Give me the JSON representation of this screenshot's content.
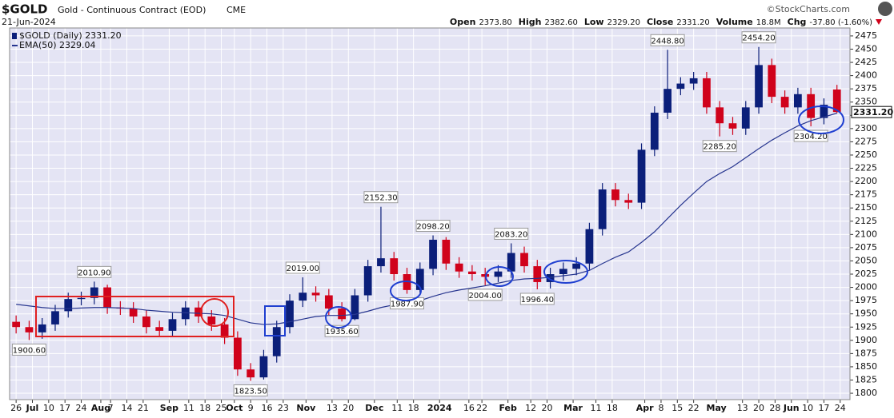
{
  "chart_data": {
    "type": "candlestick",
    "title": "$GOLD",
    "subtitle": "Gold - Continuous Contract (EOD)",
    "exchange": "CME",
    "date": "21-Jun-2024",
    "source": "©StockCharts.com",
    "header": [
      {
        "label": "Open",
        "value": "2373.80"
      },
      {
        "label": "High",
        "value": "2382.60"
      },
      {
        "label": "Low",
        "value": "2329.20"
      },
      {
        "label": "Close",
        "value": "2331.20"
      },
      {
        "label": "Volume",
        "value": "18.8M"
      },
      {
        "label": "Chg",
        "value": "-37.80 (-1.60%)"
      }
    ],
    "last_label": "2331.20",
    "x": [
      0,
      4,
      8,
      12,
      16,
      20,
      24,
      28,
      32,
      36,
      40,
      44,
      48,
      52,
      56,
      60,
      64,
      68,
      72,
      76,
      80,
      84,
      88,
      92,
      96,
      100,
      104,
      108,
      112,
      116,
      120,
      124,
      128,
      132,
      136,
      140,
      144,
      148,
      152,
      156,
      160,
      164,
      168,
      172,
      176,
      180,
      184,
      188,
      192,
      196,
      200,
      204,
      208,
      212,
      216,
      220,
      224,
      228,
      232,
      236,
      240,
      244,
      248,
      252
    ],
    "price": {
      "name": "$GOLD (Daily) 2331.20",
      "up_color": "#0b1f7a",
      "down_color": "#d0021b",
      "open": [
        1935,
        1925,
        1915,
        1930,
        1955,
        1978,
        1980,
        2000,
        1962,
        1960,
        1945,
        1925,
        1918,
        1940,
        1962,
        1945,
        1930,
        1905,
        1845,
        1830,
        1870,
        1925,
        1975,
        1990,
        1985,
        1960,
        1940,
        1985,
        2040,
        2055,
        2025,
        1995,
        2035,
        2090,
        2045,
        2030,
        2025,
        2020,
        2030,
        2065,
        2040,
        2010,
        2025,
        2035,
        2045,
        2110,
        2185,
        2165,
        2160,
        2260,
        2330,
        2375,
        2385,
        2395,
        2340,
        2310,
        2300,
        2340,
        2420,
        2360,
        2340,
        2365,
        2320,
        2373.8
      ],
      "high": [
        1947,
        1937,
        1942,
        1967,
        1990,
        1992,
        2010.9,
        2005,
        1974,
        1972,
        1957,
        1937,
        1952,
        1974,
        1974,
        1957,
        1942,
        1917,
        1857,
        1882,
        1937,
        1987,
        2019,
        2002,
        1997,
        1972,
        1997,
        2052,
        2152.3,
        2067,
        2037,
        2047,
        2098.2,
        2095,
        2057,
        2042,
        2037,
        2042,
        2083.2,
        2077,
        2052,
        2037,
        2047,
        2057,
        2122,
        2197,
        2197,
        2177,
        2272,
        2342,
        2448.8,
        2397,
        2407,
        2407,
        2352,
        2322,
        2352,
        2454.2,
        2432,
        2372,
        2377,
        2377,
        2357,
        2382.6
      ],
      "low": [
        1913,
        1900.6,
        1903,
        1918,
        1943,
        1966,
        1968,
        1950,
        1948,
        1933,
        1913,
        1906,
        1906,
        1928,
        1933,
        1918,
        1893,
        1833,
        1823.5,
        1826,
        1858,
        1913,
        1963,
        1973,
        1948,
        1935.6,
        1938,
        1973,
        2028,
        2013,
        1987.9,
        1990,
        2023,
        2033,
        2018,
        2013,
        2004,
        2010,
        2018,
        2028,
        1996.4,
        1998,
        2013,
        2023,
        2033,
        2098,
        2153,
        2148,
        2148,
        2248,
        2318,
        2363,
        2373,
        2328,
        2285.2,
        2288,
        2288,
        2328,
        2348,
        2328,
        2328,
        2304.2,
        2308,
        2329.2
      ],
      "close": [
        1925,
        1915,
        1930,
        1955,
        1978,
        1980,
        2000,
        1962,
        1960,
        1945,
        1925,
        1918,
        1940,
        1962,
        1945,
        1930,
        1905,
        1845,
        1830,
        1870,
        1925,
        1975,
        1990,
        1985,
        1960,
        1940,
        1985,
        2040,
        2055,
        2025,
        1995,
        2035,
        2090,
        2045,
        2030,
        2025,
        2020,
        2030,
        2065,
        2040,
        2010,
        2025,
        2035,
        2045,
        2110,
        2185,
        2165,
        2160,
        2260,
        2330,
        2375,
        2385,
        2395,
        2340,
        2310,
        2300,
        2340,
        2420,
        2360,
        2340,
        2365,
        2320,
        2345,
        2331.2
      ]
    },
    "ema": {
      "name": "EMA(50) 2329.04",
      "color": "#27368f",
      "values": [
        1968,
        1965,
        1962,
        1960,
        1960,
        1961,
        1962,
        1962,
        1961,
        1960,
        1957,
        1955,
        1953,
        1952,
        1951,
        1950,
        1947,
        1940,
        1933,
        1930,
        1931,
        1935,
        1940,
        1945,
        1947,
        1947,
        1949,
        1955,
        1962,
        1967,
        1970,
        1975,
        1983,
        1990,
        1995,
        1999,
        2003,
        2008,
        2013,
        2016,
        2017,
        2019,
        2022,
        2025,
        2032,
        2045,
        2057,
        2067,
        2085,
        2105,
        2130,
        2155,
        2178,
        2200,
        2215,
        2228,
        2245,
        2262,
        2278,
        2292,
        2305,
        2315,
        2322,
        2329.04
      ]
    },
    "annotations": [
      {
        "value": 1900.6,
        "label": "1900.60"
      },
      {
        "value": 2010.9,
        "label": "2010.90"
      },
      {
        "value": 1823.5,
        "label": "1823.50"
      },
      {
        "value": 2019,
        "label": "2019.00"
      },
      {
        "value": 1935.6,
        "label": "1935.60"
      },
      {
        "value": 2152.3,
        "label": "2152.30"
      },
      {
        "value": 1987.9,
        "label": "1987.90"
      },
      {
        "value": 2098.2,
        "label": "2098.20"
      },
      {
        "value": 2004,
        "label": "2004.00"
      },
      {
        "value": 2083.2,
        "label": "2083.20"
      },
      {
        "value": 1996.4,
        "label": "1996.40"
      },
      {
        "value": 2448.8,
        "label": "2448.80"
      },
      {
        "value": 2285.2,
        "label": "2285.20"
      },
      {
        "value": 2454.2,
        "label": "2454.20"
      },
      {
        "value": 2304.2,
        "label": "2304.20"
      }
    ],
    "xlim": [
      -2,
      256
    ],
    "xticks": [
      {
        "value": 0,
        "label": "26"
      },
      {
        "value": 5,
        "label": "Jul"
      },
      {
        "value": 10,
        "label": "10"
      },
      {
        "value": 15,
        "label": "17"
      },
      {
        "value": 20,
        "label": "24"
      },
      {
        "value": 26,
        "label": "Aug"
      },
      {
        "value": 29,
        "label": "7"
      },
      {
        "value": 34,
        "label": "14"
      },
      {
        "value": 39,
        "label": "21"
      },
      {
        "value": 47,
        "label": "Sep"
      },
      {
        "value": 53,
        "label": "11"
      },
      {
        "value": 58,
        "label": "18"
      },
      {
        "value": 63,
        "label": "25"
      },
      {
        "value": 67,
        "label": "Oct"
      },
      {
        "value": 72,
        "label": "9"
      },
      {
        "value": 77,
        "label": "16"
      },
      {
        "value": 82,
        "label": "23"
      },
      {
        "value": 89,
        "label": "Nov"
      },
      {
        "value": 97,
        "label": "13"
      },
      {
        "value": 102,
        "label": "20"
      },
      {
        "value": 110,
        "label": "Dec"
      },
      {
        "value": 117,
        "label": "11"
      },
      {
        "value": 122,
        "label": "18"
      },
      {
        "value": 130,
        "label": "2024"
      },
      {
        "value": 139,
        "label": "16"
      },
      {
        "value": 143,
        "label": "22"
      },
      {
        "value": 151,
        "label": "Feb"
      },
      {
        "value": 158,
        "label": "12"
      },
      {
        "value": 163,
        "label": "20"
      },
      {
        "value": 171,
        "label": "Mar"
      },
      {
        "value": 178,
        "label": "11"
      },
      {
        "value": 183,
        "label": "18"
      },
      {
        "value": 193,
        "label": "Apr"
      },
      {
        "value": 198,
        "label": "8"
      },
      {
        "value": 203,
        "label": "15"
      },
      {
        "value": 208,
        "label": "22"
      },
      {
        "value": 215,
        "label": "May"
      },
      {
        "value": 223,
        "label": "13"
      },
      {
        "value": 228,
        "label": "20"
      },
      {
        "value": 233,
        "label": "28"
      },
      {
        "value": 238,
        "label": "Jun"
      },
      {
        "value": 243,
        "label": "10"
      },
      {
        "value": 248,
        "label": "17"
      },
      {
        "value": 253,
        "label": "24"
      }
    ],
    "ylim": [
      1788,
      2490
    ],
    "yticks": [
      1800,
      1825,
      1850,
      1875,
      1900,
      1925,
      1950,
      1975,
      2000,
      2025,
      2050,
      2075,
      2100,
      2125,
      2150,
      2175,
      2200,
      2225,
      2250,
      2275,
      2300,
      2325,
      2350,
      2375,
      2400,
      2425,
      2450,
      2475
    ],
    "grid": true
  }
}
